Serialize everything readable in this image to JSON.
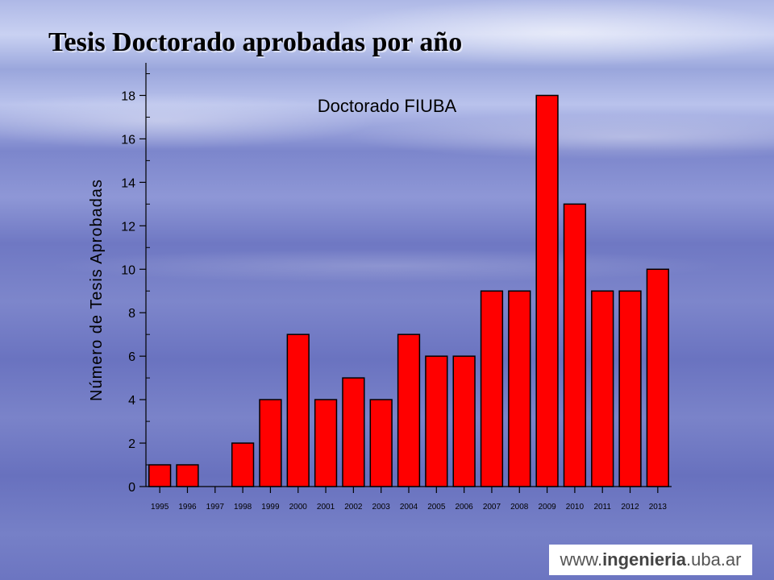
{
  "slide": {
    "title": "Tesis Doctorado aprobadas por año"
  },
  "watermark": {
    "prefix": "www.",
    "brand": "ingenieria",
    "suffix": ".uba.ar"
  },
  "colors": {
    "bar_fill": "#ff0000",
    "bar_stroke": "#000000",
    "axis": "#000000"
  },
  "chart_data": {
    "type": "bar",
    "title": "Doctorado FIUBA",
    "ylabel": "Número de Tesis Aprobadas",
    "xlabel": "",
    "categories": [
      "1995",
      "1996",
      "1997",
      "1998",
      "1999",
      "2000",
      "2001",
      "2002",
      "2003",
      "2004",
      "2005",
      "2006",
      "2007",
      "2008",
      "2009",
      "2010",
      "2011",
      "2012",
      "2013"
    ],
    "values": [
      1,
      1,
      0,
      2,
      4,
      7,
      4,
      5,
      4,
      7,
      6,
      6,
      9,
      9,
      18,
      13,
      9,
      9,
      10
    ],
    "ylim": [
      0,
      19.5
    ],
    "yticks": [
      0,
      2,
      4,
      6,
      8,
      10,
      12,
      14,
      16,
      18
    ],
    "grid": false,
    "legend": "none"
  }
}
